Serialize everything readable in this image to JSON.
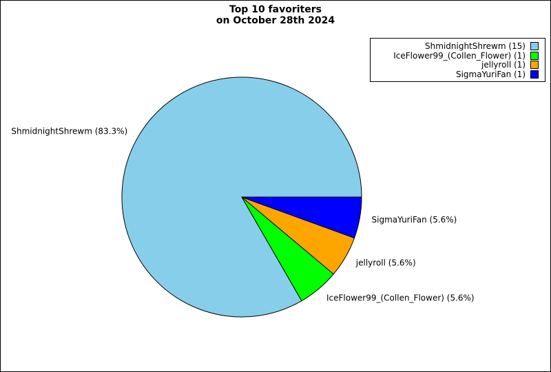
{
  "chart_data": {
    "type": "pie",
    "title_lines": [
      "Top 10 favoriters",
      "on October 28th 2024"
    ],
    "slices": [
      {
        "name": "ShmidnightShrewm",
        "value": 15,
        "legend_label": "ShmidnightShrewm (15)",
        "pie_label": "ShmidnightShrewm (83.3%)",
        "color": "#87ceeb"
      },
      {
        "name": "IceFlower99_(Collen_Flower)",
        "value": 1,
        "legend_label": "IceFlower99_(Collen_Flower) (1)",
        "pie_label": "IceFlower99_(Collen_Flower) (5.6%)",
        "color": "#00ff00"
      },
      {
        "name": "jellyroll",
        "value": 1,
        "legend_label": "jellyroll (1)",
        "pie_label": "jellyroll (5.6%)",
        "color": "#ffa500"
      },
      {
        "name": "SigmaYuriFan",
        "value": 1,
        "legend_label": "SigmaYuriFan (1)",
        "pie_label": "SigmaYuriFan (5.6%)",
        "color": "#0000ff"
      }
    ],
    "legend_position": "top-right",
    "start_angle_deg": 0,
    "direction": "counterclockwise"
  }
}
